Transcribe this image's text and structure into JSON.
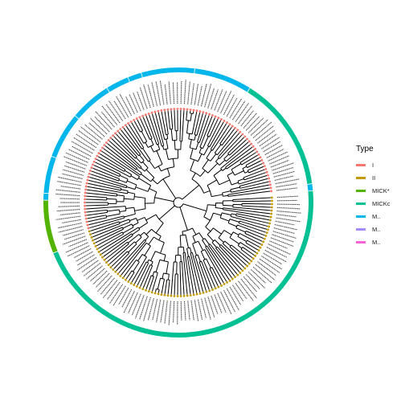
{
  "legend": {
    "title": "Type",
    "items": [
      {
        "label": "I",
        "color": "#F8766D"
      },
      {
        "label": "II",
        "color": "#C49A00"
      },
      {
        "label": "MICK*",
        "color": "#53B400"
      },
      {
        "label": "MICKc",
        "color": "#00C094"
      },
      {
        "label": "M..",
        "color": "#00B6EB"
      },
      {
        "label": "M..",
        "color": "#A58AFF"
      },
      {
        "label": "M..",
        "color": "#FB61D7"
      }
    ]
  },
  "ring_segments": [
    {
      "type": "MICKc",
      "from_deg": 355,
      "to_deg": 518
    },
    {
      "type": "MICK*",
      "from_deg": 518,
      "to_deg": 541
    },
    {
      "type": "M..",
      "from_deg": 541,
      "to_deg": 544
    },
    {
      "type": "M..",
      "from_deg": 544,
      "to_deg": 560
    },
    {
      "type": "M..",
      "from_deg": 560,
      "to_deg": 580
    },
    {
      "type": "M..",
      "from_deg": 580,
      "to_deg": 598
    },
    {
      "type": "M..",
      "from_deg": 598,
      "to_deg": 608
    },
    {
      "type": "M..",
      "from_deg": 608,
      "to_deg": 614
    },
    {
      "type": "M..",
      "from_deg": 614,
      "to_deg": 637
    },
    {
      "type": "M..",
      "from_deg": 637,
      "to_deg": 662
    },
    {
      "type": "MICKc",
      "from_deg": 662,
      "to_deg": 712
    },
    {
      "type": "M..",
      "from_deg": 712,
      "to_deg": 715
    }
  ]
}
